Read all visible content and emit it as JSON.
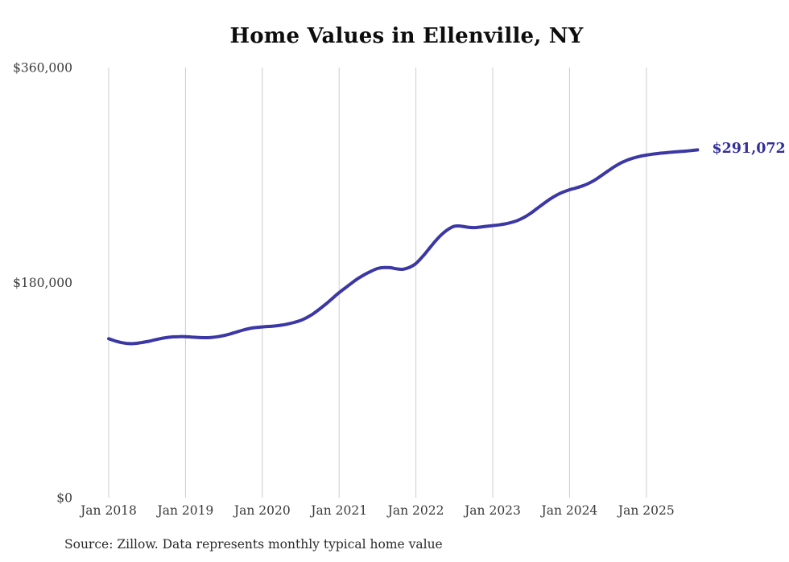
{
  "chart_data": {
    "type": "line",
    "title": "Home Values in Ellenville, NY",
    "source_note": "Source: Zillow. Data represents monthly typical home value",
    "end_label": "$291,072",
    "latest_value": 291072,
    "x_ticks": [
      "Jan 2018",
      "Jan 2019",
      "Jan 2020",
      "Jan 2021",
      "Jan 2022",
      "Jan 2023",
      "Jan 2024",
      "Jan 2025"
    ],
    "y_ticks": [
      {
        "label": "$0",
        "value": 0
      },
      {
        "label": "$180,000",
        "value": 180000
      },
      {
        "label": "$360,000",
        "value": 360000
      }
    ],
    "ylim": [
      0,
      360000
    ],
    "grid": "vertical-only",
    "legend": "none",
    "frequency": "monthly",
    "series": [
      {
        "name": "typical-home-value",
        "monthly_values": [
          133000,
          131200,
          129800,
          129000,
          129000,
          129700,
          130600,
          131800,
          133000,
          134000,
          134600,
          134800,
          134700,
          134400,
          134100,
          133900,
          134100,
          134700,
          135700,
          137100,
          138700,
          140300,
          141600,
          142400,
          142900,
          143300,
          143700,
          144400,
          145400,
          146700,
          148400,
          150900,
          154100,
          158100,
          162400,
          167000,
          171600,
          175700,
          179800,
          183600,
          186800,
          189500,
          191800,
          192600,
          192500,
          191500,
          191200,
          192800,
          196000,
          201500,
          208000,
          214500,
          220200,
          224500,
          227200,
          227300,
          226400,
          226000,
          226400,
          227100,
          227700,
          228300,
          229200,
          230500,
          232300,
          234900,
          238300,
          242300,
          246300,
          250100,
          253300,
          255800,
          257700,
          259200,
          260900,
          263100,
          266000,
          269600,
          273400,
          277000,
          280100,
          282500,
          284300,
          285700,
          286700,
          287500,
          288200,
          288700,
          289200,
          289600,
          290000,
          290500,
          291072
        ]
      }
    ],
    "line_color": "#3b37a4",
    "end_label_color": "#322e9e",
    "grid_color": "#cccccc",
    "axis_text_color": "#3a3a3a"
  }
}
